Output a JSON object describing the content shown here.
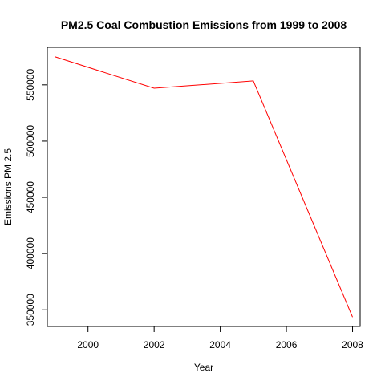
{
  "chart_data": {
    "type": "line",
    "title": "PM2.5 Coal Combustion Emissions from 1999 to 2008",
    "xlabel": "Year",
    "ylabel": "Emissions PM 2.5",
    "x": [
      1999,
      2002,
      2005,
      2008
    ],
    "series": [
      {
        "values": [
          575000,
          547000,
          553500,
          343500
        ],
        "color": "#ff0000"
      }
    ],
    "xlim": [
      1998.77,
      2008.23
    ],
    "ylim": [
      335200,
      583400
    ],
    "x_ticks": [
      2000,
      2002,
      2004,
      2006,
      2008
    ],
    "x_tick_labels": [
      "2000",
      "2002",
      "2004",
      "2006",
      "2008"
    ],
    "y_ticks": [
      350000,
      400000,
      450000,
      500000,
      550000
    ],
    "y_tick_labels": [
      "350000",
      "400000",
      "450000",
      "500000",
      "550000"
    ],
    "grid": false
  }
}
